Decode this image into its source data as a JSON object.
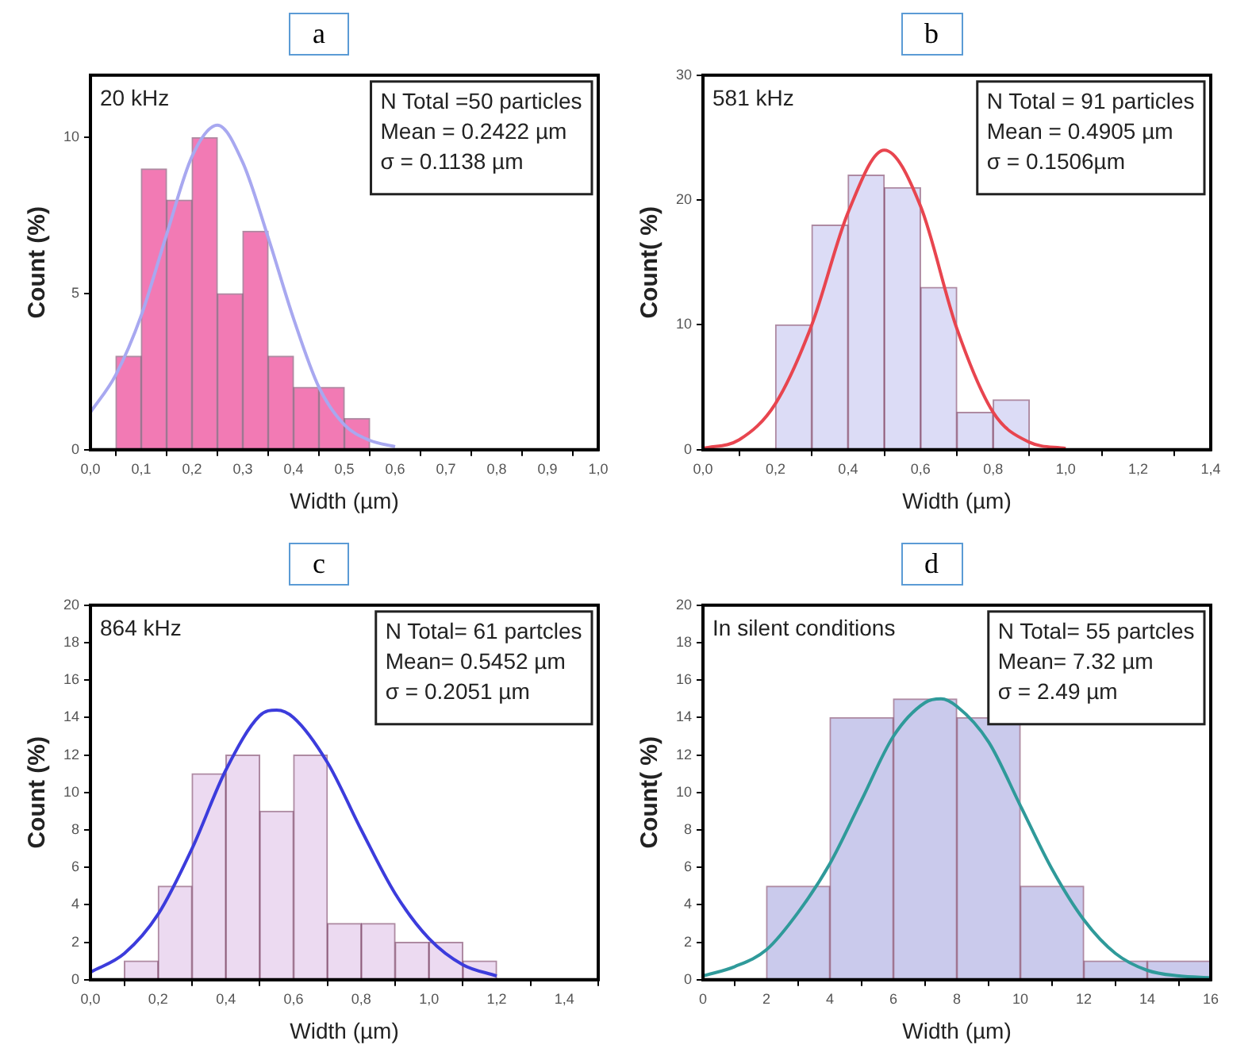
{
  "chart_data": [
    {
      "type": "histogram",
      "title": "a",
      "xlabel": "Width (µm)",
      "ylabel": "Count (%)",
      "bins": [
        0.05,
        0.1,
        0.15,
        0.2,
        0.25,
        0.3,
        0.35,
        0.4,
        0.45,
        0.5,
        0.55
      ],
      "values": [
        3,
        9,
        8,
        10,
        5,
        7,
        3,
        2,
        2,
        1
      ],
      "color": "#f27ab4",
      "series": [
        {
          "type": "line",
          "color": "#a8a8f0",
          "x": [
            0,
            0.05,
            0.1,
            0.15,
            0.2,
            0.25,
            0.3,
            0.35,
            0.4,
            0.45,
            0.5,
            0.55,
            0.6
          ],
          "values": [
            1.2,
            2.4,
            4.3,
            6.9,
            9.4,
            10.4,
            9.2,
            6.8,
            4.2,
            2.0,
            0.8,
            0.3,
            0.1
          ]
        }
      ],
      "xlim": [
        0,
        1
      ],
      "xticks": [
        {
          "value": 0,
          "label": "0,0"
        },
        {
          "value": 0.1,
          "label": "0,1"
        },
        {
          "value": 0.2,
          "label": "0,2"
        },
        {
          "value": 0.3,
          "label": "0,3"
        },
        {
          "value": 0.4,
          "label": "0,4"
        },
        {
          "value": 0.5,
          "label": "0,5"
        },
        {
          "value": 0.6,
          "label": "0,6"
        },
        {
          "value": 0.7,
          "label": "0,7"
        },
        {
          "value": 0.8,
          "label": "0,8"
        },
        {
          "value": 0.9,
          "label": "0,9"
        },
        {
          "value": 1,
          "label": "1,0"
        }
      ],
      "ylim": [
        0,
        12
      ],
      "yticks": [
        0,
        5,
        10
      ],
      "annotations": [
        "20 kHz",
        "N Total =50 particles",
        "Mean = 0.2422 µm",
        "σ = 0.1138 µm"
      ]
    },
    {
      "type": "histogram",
      "title": "b",
      "xlabel": "Width (µm)",
      "ylabel": "Count( %)",
      "bins": [
        0.2,
        0.3,
        0.4,
        0.5,
        0.6,
        0.7,
        0.8,
        0.9
      ],
      "values": [
        10,
        18,
        22,
        21,
        13,
        3,
        4
      ],
      "color": "#dcdcf6",
      "series": [
        {
          "type": "line",
          "color": "#e8454f",
          "x": [
            0,
            0.1,
            0.2,
            0.3,
            0.4,
            0.5,
            0.6,
            0.7,
            0.8,
            0.9,
            1.0
          ],
          "values": [
            0.1,
            0.8,
            3.7,
            10,
            19,
            24,
            19.5,
            9.7,
            3,
            0.6,
            0.1
          ]
        }
      ],
      "xlim": [
        0,
        1.4
      ],
      "xticks": [
        {
          "value": 0,
          "label": "0,0"
        },
        {
          "value": 0.2,
          "label": "0,2"
        },
        {
          "value": 0.4,
          "label": "0,4"
        },
        {
          "value": 0.6,
          "label": "0,6"
        },
        {
          "value": 0.8,
          "label": "0,8"
        },
        {
          "value": 1,
          "label": "1,0"
        },
        {
          "value": 1.2,
          "label": "1,2"
        },
        {
          "value": 1.4,
          "label": "1,4"
        }
      ],
      "ylim": [
        0,
        30
      ],
      "yticks": [
        0,
        10,
        20,
        30
      ],
      "annotations": [
        "581 kHz",
        "N Total = 91 particles",
        "Mean = 0.4905 µm",
        "σ = 0.1506µm"
      ]
    },
    {
      "type": "histogram",
      "title": "c",
      "xlabel": "Width (µm)",
      "ylabel": "Count (%)",
      "bins": [
        0.1,
        0.2,
        0.3,
        0.4,
        0.5,
        0.6,
        0.7,
        0.8,
        0.9,
        1.0,
        1.1,
        1.2
      ],
      "values": [
        1,
        5,
        11,
        12,
        9,
        12,
        3,
        3,
        2,
        2,
        1
      ],
      "color": "#ecdaf1",
      "series": [
        {
          "type": "line",
          "color": "#3c3cdc",
          "x": [
            0,
            0.1,
            0.2,
            0.3,
            0.4,
            0.5,
            0.55,
            0.6,
            0.7,
            0.8,
            0.9,
            1.0,
            1.1,
            1.2
          ],
          "values": [
            0.4,
            1.4,
            3.5,
            7.0,
            11.2,
            14.1,
            14.4,
            14.0,
            11.6,
            8.0,
            4.6,
            2.2,
            0.8,
            0.2
          ]
        }
      ],
      "xlim": [
        0,
        1.5
      ],
      "xticks": [
        {
          "value": 0,
          "label": "0,0"
        },
        {
          "value": 0.2,
          "label": "0,2"
        },
        {
          "value": 0.4,
          "label": "0,4"
        },
        {
          "value": 0.6,
          "label": "0,6"
        },
        {
          "value": 0.8,
          "label": "0,8"
        },
        {
          "value": 1,
          "label": "1,0"
        },
        {
          "value": 1.2,
          "label": "1,2"
        },
        {
          "value": 1.4,
          "label": "1,4"
        }
      ],
      "ylim": [
        0,
        20
      ],
      "yticks": [
        0,
        2,
        4,
        6,
        8,
        10,
        12,
        14,
        16,
        18,
        20
      ],
      "annotations": [
        "864 kHz",
        "N Total= 61 partcles",
        "Mean= 0.5452 µm",
        "σ = 0.2051 µm"
      ]
    },
    {
      "type": "histogram",
      "title": "d",
      "xlabel": "Width (µm)",
      "ylabel": "Count( %)",
      "bins": [
        2,
        4,
        6,
        8,
        10,
        12,
        14,
        16
      ],
      "values": [
        5,
        14,
        15,
        14,
        5,
        1,
        1
      ],
      "color": "#cacaec",
      "series": [
        {
          "type": "line",
          "color": "#2f9a9a",
          "x": [
            0,
            1,
            2,
            3,
            4,
            5,
            6,
            7,
            7.5,
            8,
            9,
            10,
            11,
            12,
            13,
            14,
            15,
            16
          ],
          "values": [
            0.2,
            0.7,
            1.6,
            3.6,
            6.2,
            9.6,
            13,
            14.8,
            15,
            14.6,
            12.7,
            9.3,
            5.9,
            3.2,
            1.4,
            0.5,
            0.2,
            0.1
          ]
        }
      ],
      "xlim": [
        0,
        16
      ],
      "xticks": [
        0,
        2,
        4,
        6,
        8,
        10,
        12,
        14,
        16
      ],
      "ylim": [
        0,
        20
      ],
      "yticks": [
        0,
        2,
        4,
        6,
        8,
        10,
        12,
        14,
        16,
        18,
        20
      ],
      "annotations": [
        "In silent conditions",
        "N Total= 55 partcles",
        "Mean= 7.32 µm",
        "σ = 2.49 µm"
      ]
    }
  ]
}
